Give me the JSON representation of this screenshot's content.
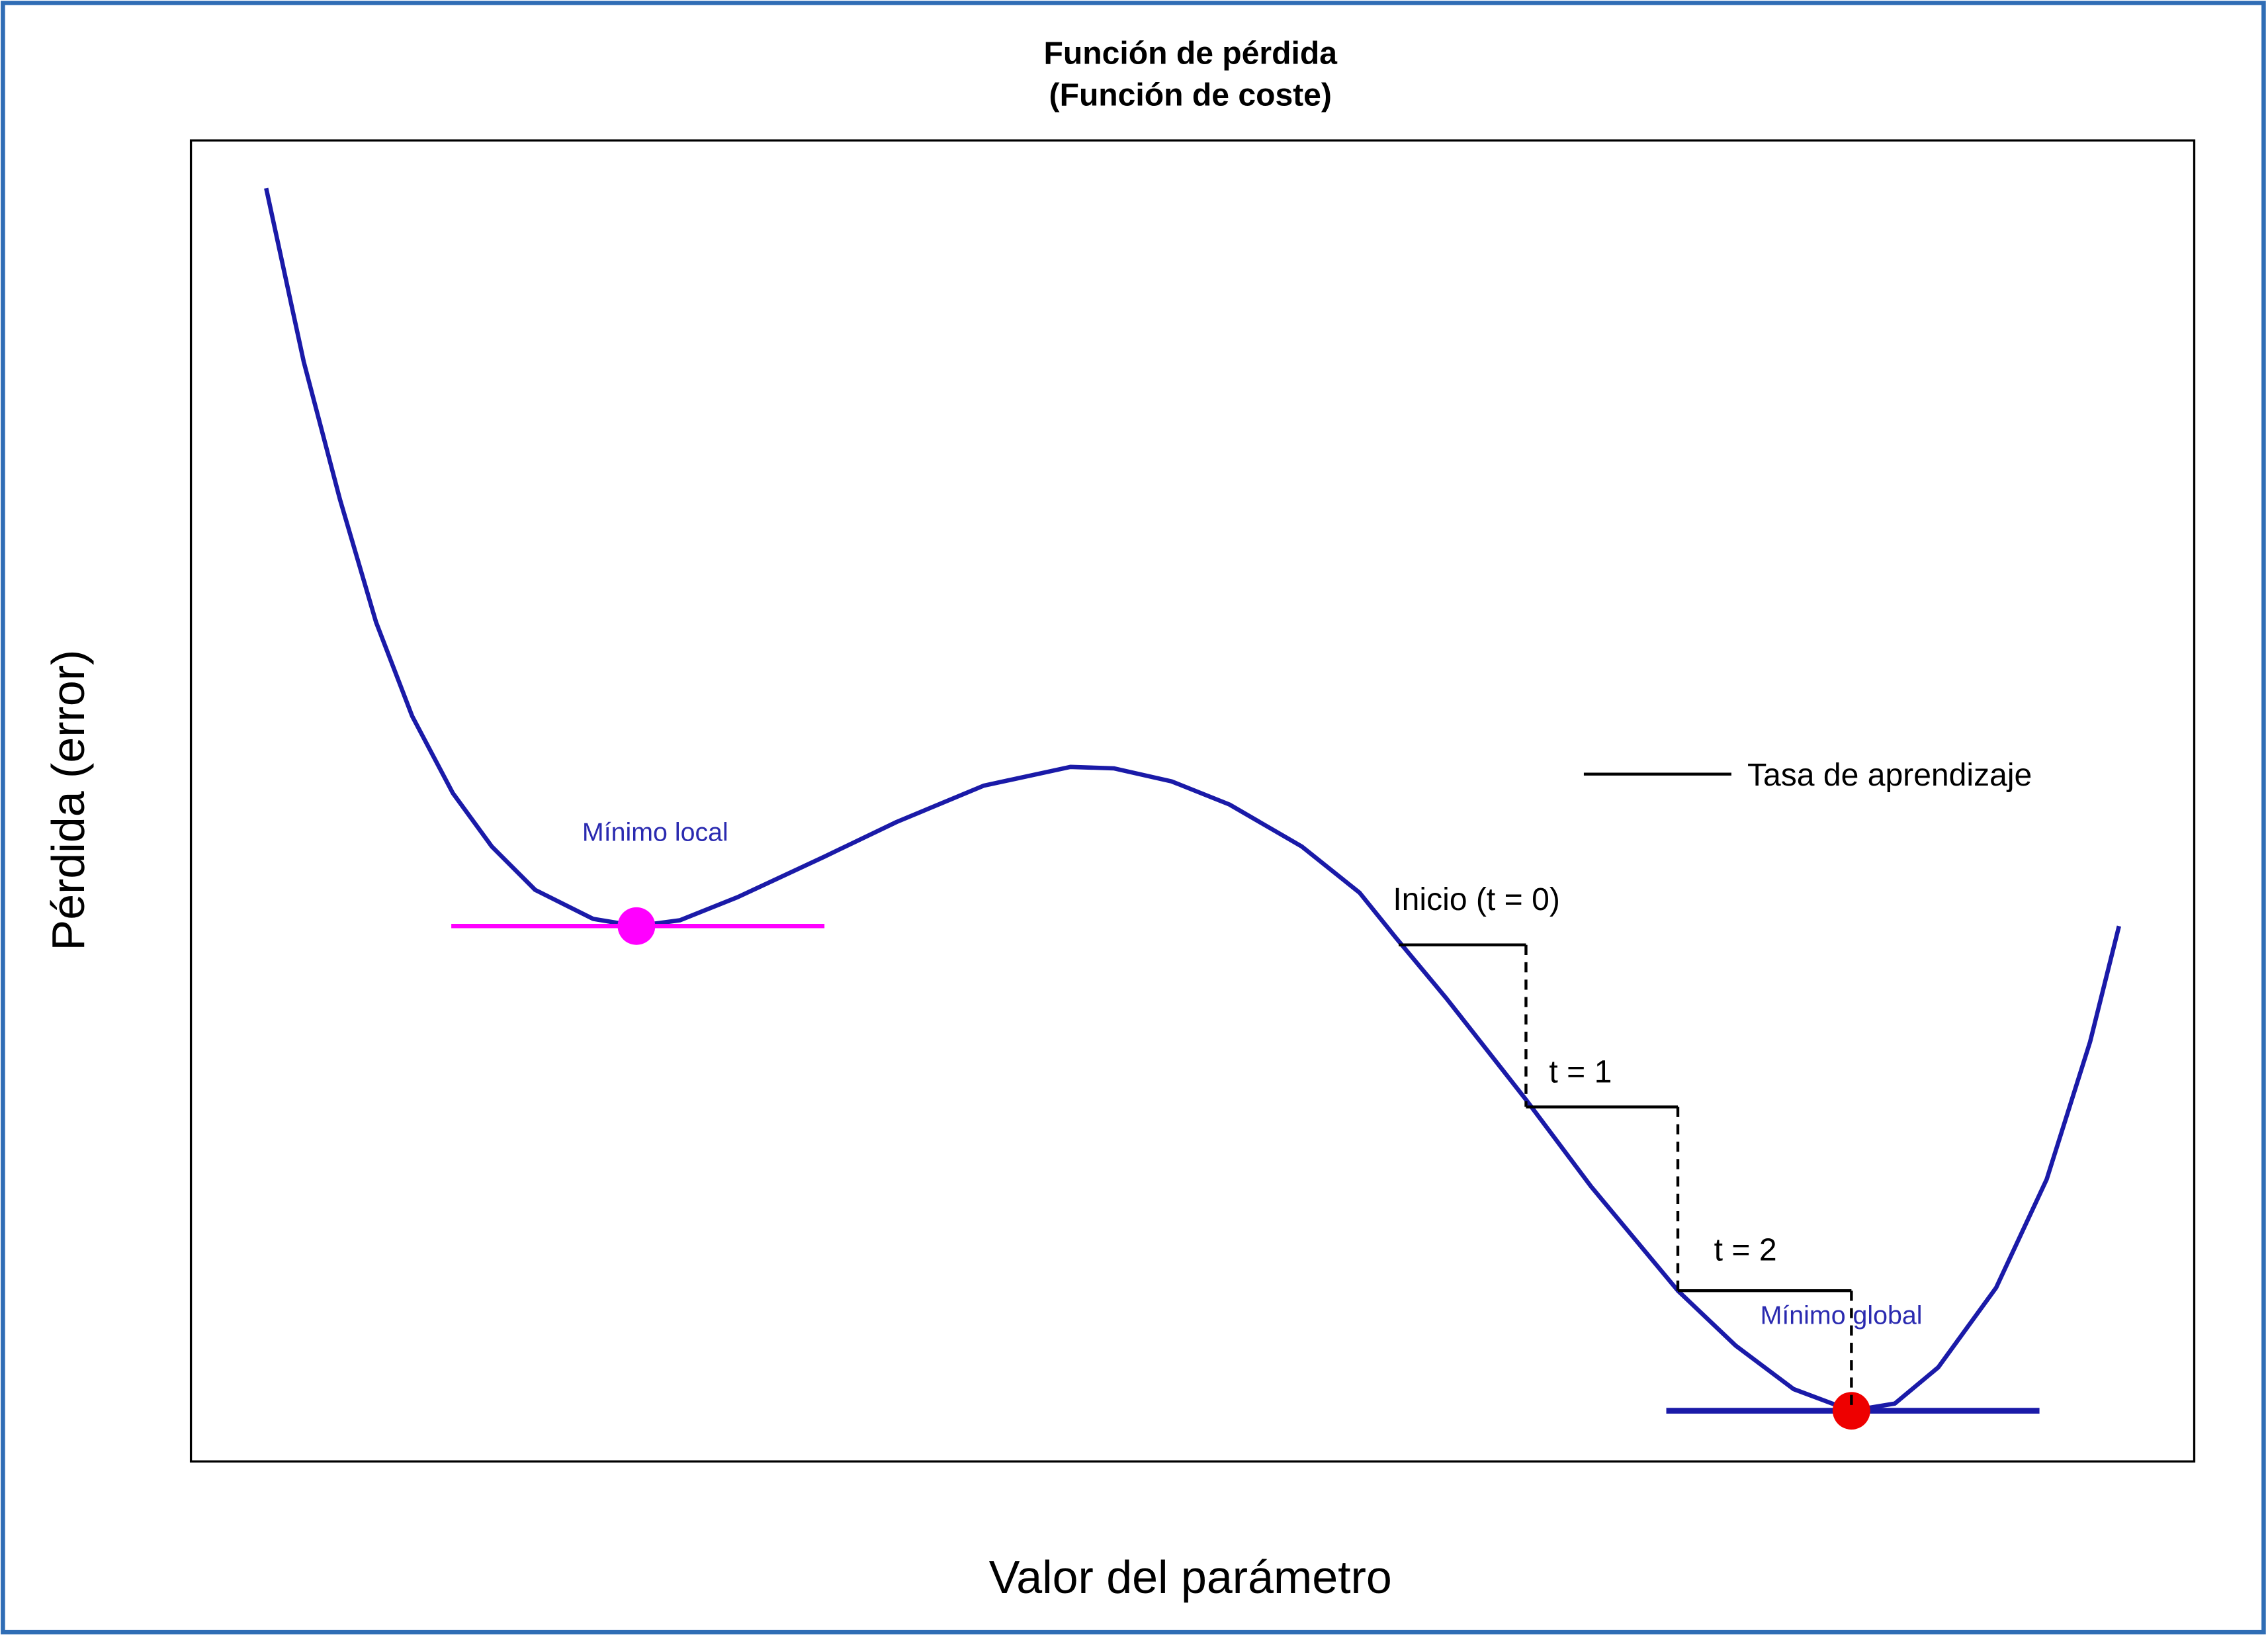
{
  "title": {
    "line1": "Función de pérdida",
    "line2": "(Función de coste)"
  },
  "axes": {
    "x_label": "Valor del parámetro",
    "y_label": "Pérdida (error)"
  },
  "legend": {
    "label": "Tasa de aprendizaje"
  },
  "annotations": {
    "local_min": "Mínimo local",
    "global_min": "Mínimo global",
    "steps": [
      "Inicio (t = 0)",
      "t = 1",
      "t = 2"
    ]
  }
}
